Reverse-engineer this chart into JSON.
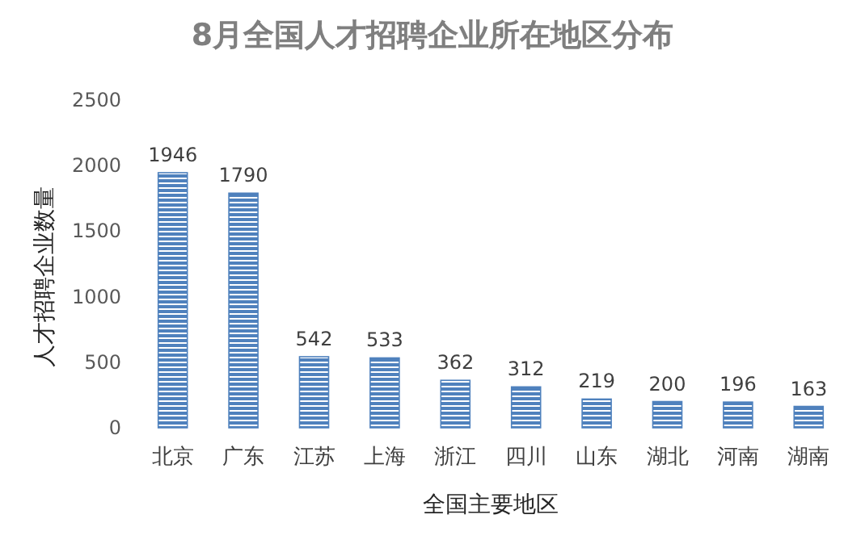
{
  "chart_data": {
    "type": "bar",
    "title": "8月全国人才招聘企业所在地区分布",
    "xlabel": "全国主要地区",
    "ylabel": "人才招聘企业数量",
    "categories": [
      "北京",
      "广东",
      "江苏",
      "上海",
      "浙江",
      "四川",
      "山东",
      "湖北",
      "河南",
      "湖南"
    ],
    "values": [
      1946,
      1790,
      542,
      533,
      362,
      312,
      219,
      200,
      196,
      163
    ],
    "color": "#4f81bd",
    "ylim": [
      0,
      2500
    ],
    "yticks": [
      0,
      500,
      1000,
      1500,
      2000,
      2500
    ],
    "data_labels": true
  }
}
